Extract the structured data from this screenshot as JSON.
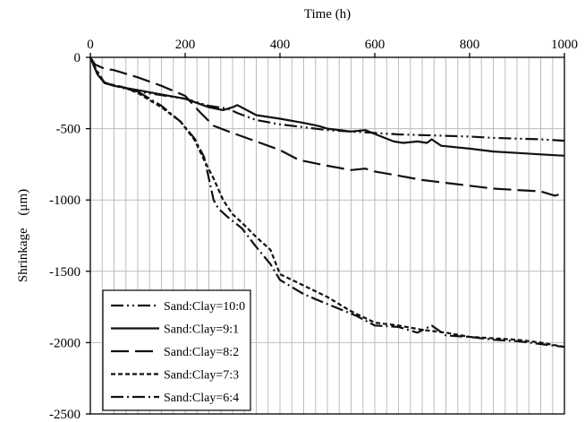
{
  "chart_data": {
    "type": "line",
    "xlabel": "Time (h)",
    "ylabel_text": "Shrinkage",
    "ylabel_unit": "(μm)",
    "xlim": [
      0,
      1000
    ],
    "ylim": [
      -2500,
      0
    ],
    "x_ticks": [
      0,
      200,
      400,
      600,
      800,
      1000
    ],
    "y_ticks": [
      0,
      -500,
      -1000,
      -1500,
      -2000,
      -2500
    ],
    "x_minor_step": 25,
    "y_minor_step": 100,
    "x_axis_position": "top",
    "grid": true,
    "legend_position": "bottom-left",
    "series": [
      {
        "name": "Sand:Clay=10:0",
        "dash": "14,4,2,4,2,4",
        "points": [
          [
            0,
            0
          ],
          [
            5,
            -40
          ],
          [
            15,
            -120
          ],
          [
            30,
            -175
          ],
          [
            50,
            -200
          ],
          [
            100,
            -240
          ],
          [
            150,
            -265
          ],
          [
            200,
            -290
          ],
          [
            250,
            -340
          ],
          [
            290,
            -360
          ],
          [
            310,
            -390
          ],
          [
            350,
            -440
          ],
          [
            400,
            -470
          ],
          [
            450,
            -490
          ],
          [
            500,
            -510
          ],
          [
            550,
            -520
          ],
          [
            600,
            -530
          ],
          [
            650,
            -540
          ],
          [
            700,
            -545
          ],
          [
            750,
            -550
          ],
          [
            800,
            -555
          ],
          [
            850,
            -565
          ],
          [
            900,
            -570
          ],
          [
            950,
            -575
          ],
          [
            1000,
            -585
          ]
        ]
      },
      {
        "name": "Sand:Clay=9:1",
        "dash": "",
        "points": [
          [
            0,
            0
          ],
          [
            5,
            -40
          ],
          [
            15,
            -120
          ],
          [
            30,
            -180
          ],
          [
            50,
            -200
          ],
          [
            100,
            -230
          ],
          [
            150,
            -260
          ],
          [
            200,
            -290
          ],
          [
            250,
            -350
          ],
          [
            280,
            -370
          ],
          [
            300,
            -350
          ],
          [
            310,
            -335
          ],
          [
            330,
            -370
          ],
          [
            350,
            -405
          ],
          [
            400,
            -430
          ],
          [
            450,
            -460
          ],
          [
            480,
            -480
          ],
          [
            500,
            -500
          ],
          [
            550,
            -520
          ],
          [
            580,
            -510
          ],
          [
            610,
            -550
          ],
          [
            640,
            -590
          ],
          [
            660,
            -600
          ],
          [
            690,
            -590
          ],
          [
            710,
            -600
          ],
          [
            720,
            -575
          ],
          [
            740,
            -620
          ],
          [
            800,
            -640
          ],
          [
            850,
            -660
          ],
          [
            900,
            -670
          ],
          [
            950,
            -680
          ],
          [
            1000,
            -690
          ]
        ]
      },
      {
        "name": "Sand:Clay=8:2",
        "dash": "20,7",
        "points": [
          [
            0,
            0
          ],
          [
            10,
            -50
          ],
          [
            30,
            -80
          ],
          [
            50,
            -90
          ],
          [
            100,
            -140
          ],
          [
            150,
            -200
          ],
          [
            200,
            -270
          ],
          [
            230,
            -380
          ],
          [
            260,
            -480
          ],
          [
            300,
            -530
          ],
          [
            350,
            -590
          ],
          [
            400,
            -650
          ],
          [
            440,
            -720
          ],
          [
            470,
            -740
          ],
          [
            500,
            -760
          ],
          [
            550,
            -790
          ],
          [
            580,
            -780
          ],
          [
            600,
            -800
          ],
          [
            650,
            -830
          ],
          [
            700,
            -860
          ],
          [
            750,
            -880
          ],
          [
            800,
            -900
          ],
          [
            850,
            -920
          ],
          [
            900,
            -930
          ],
          [
            950,
            -940
          ],
          [
            980,
            -970
          ],
          [
            1000,
            -950
          ]
        ]
      },
      {
        "name": "Sand:Clay=7:3",
        "dash": "5,3",
        "points": [
          [
            0,
            0
          ],
          [
            10,
            -80
          ],
          [
            30,
            -180
          ],
          [
            70,
            -210
          ],
          [
            100,
            -250
          ],
          [
            150,
            -350
          ],
          [
            190,
            -450
          ],
          [
            220,
            -580
          ],
          [
            240,
            -720
          ],
          [
            260,
            -850
          ],
          [
            280,
            -1000
          ],
          [
            300,
            -1100
          ],
          [
            320,
            -1160
          ],
          [
            350,
            -1260
          ],
          [
            380,
            -1350
          ],
          [
            400,
            -1520
          ],
          [
            450,
            -1600
          ],
          [
            500,
            -1680
          ],
          [
            550,
            -1780
          ],
          [
            600,
            -1860
          ],
          [
            650,
            -1880
          ],
          [
            700,
            -1910
          ],
          [
            750,
            -1930
          ],
          [
            800,
            -1960
          ],
          [
            850,
            -1970
          ],
          [
            900,
            -1980
          ],
          [
            950,
            -2000
          ],
          [
            1000,
            -2030
          ]
        ]
      },
      {
        "name": "Sand:Clay=6:4",
        "dash": "14,4,2,4",
        "points": [
          [
            0,
            0
          ],
          [
            10,
            -70
          ],
          [
            30,
            -180
          ],
          [
            70,
            -210
          ],
          [
            100,
            -240
          ],
          [
            150,
            -340
          ],
          [
            190,
            -450
          ],
          [
            220,
            -570
          ],
          [
            240,
            -700
          ],
          [
            250,
            -850
          ],
          [
            260,
            -1000
          ],
          [
            270,
            -1060
          ],
          [
            290,
            -1120
          ],
          [
            320,
            -1200
          ],
          [
            350,
            -1330
          ],
          [
            380,
            -1450
          ],
          [
            400,
            -1560
          ],
          [
            450,
            -1660
          ],
          [
            500,
            -1730
          ],
          [
            560,
            -1810
          ],
          [
            600,
            -1880
          ],
          [
            650,
            -1890
          ],
          [
            690,
            -1930
          ],
          [
            720,
            -1880
          ],
          [
            750,
            -1950
          ],
          [
            800,
            -1960
          ],
          [
            850,
            -1980
          ],
          [
            900,
            -1990
          ],
          [
            950,
            -2010
          ],
          [
            1000,
            -2030
          ]
        ]
      }
    ]
  }
}
